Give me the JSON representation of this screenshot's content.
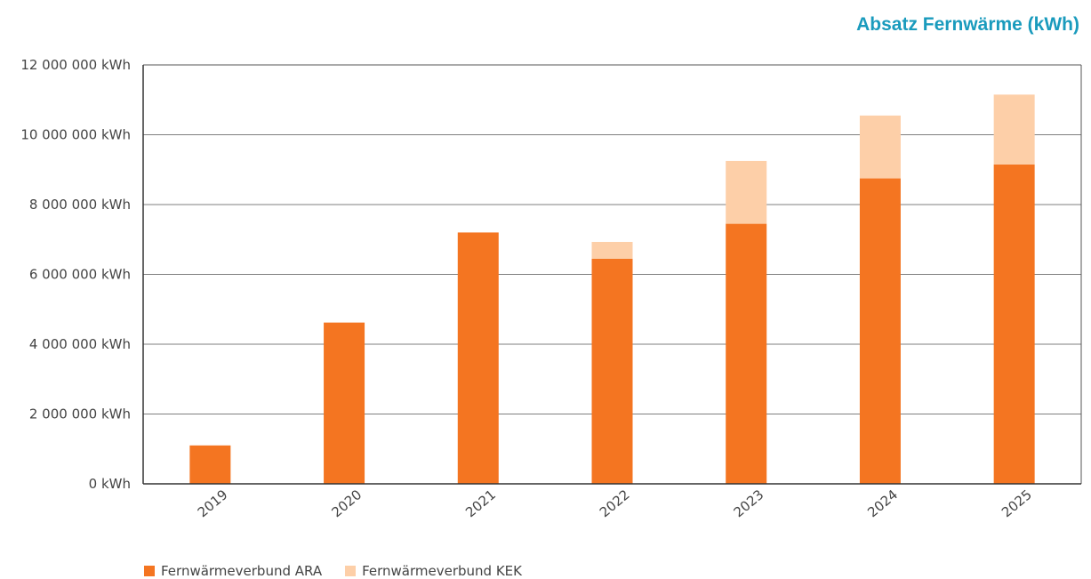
{
  "title": "Absatz Fernwärme (kWh)",
  "colors": {
    "ara": "#f47521",
    "kek": "#fdcfa8",
    "grid": "#555555",
    "title": "#1a9bbd"
  },
  "chart_data": {
    "type": "bar",
    "stacked": true,
    "title": "Absatz Fernwärme (kWh)",
    "categories": [
      "2019",
      "2020",
      "2021",
      "2022",
      "2023",
      "2024",
      "2025"
    ],
    "series": [
      {
        "name": "Fernwärmeverbund ARA",
        "values": [
          1100000,
          4620000,
          7200000,
          6450000,
          7450000,
          8750000,
          9150000
        ]
      },
      {
        "name": "Fernwärmeverbund KEK",
        "values": [
          0,
          0,
          0,
          480000,
          1800000,
          1800000,
          2000000
        ]
      }
    ],
    "ylim": [
      0,
      12000000
    ],
    "yticks": [
      0,
      2000000,
      4000000,
      6000000,
      8000000,
      10000000,
      12000000
    ],
    "ytick_labels": [
      "0 kWh",
      "2 000 000 kWh",
      "4 000 000 kWh",
      "6 000 000 kWh",
      "8 000 000 kWh",
      "10 000 000 kWh",
      "12 000 000 kWh"
    ],
    "grid": true,
    "legend_position": "bottom-left"
  }
}
